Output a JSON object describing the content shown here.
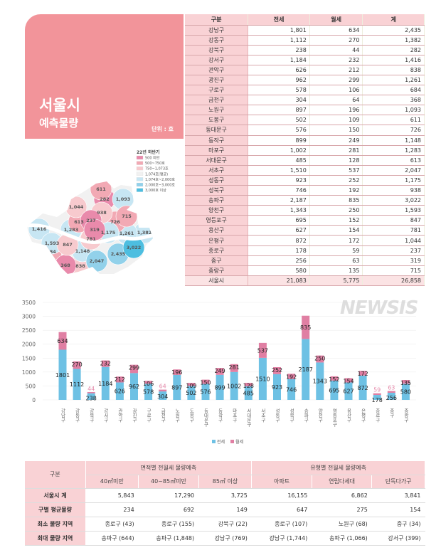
{
  "card": {
    "title": "서울시",
    "subtitle": "예측물량",
    "unit": "단위 : 호"
  },
  "district_table": {
    "headers": [
      "구분",
      "전세",
      "월세",
      "계"
    ],
    "rows": [
      [
        "강남구",
        "1,801",
        "634",
        "2,435"
      ],
      [
        "강동구",
        "1,112",
        "270",
        "1,382"
      ],
      [
        "강북구",
        "238",
        "44",
        "282"
      ],
      [
        "강서구",
        "1,184",
        "232",
        "1,416"
      ],
      [
        "관악구",
        "626",
        "212",
        "838"
      ],
      [
        "광진구",
        "962",
        "299",
        "1,261"
      ],
      [
        "구로구",
        "578",
        "106",
        "684"
      ],
      [
        "금천구",
        "304",
        "64",
        "368"
      ],
      [
        "노원구",
        "897",
        "196",
        "1,093"
      ],
      [
        "도봉구",
        "502",
        "109",
        "611"
      ],
      [
        "동대문구",
        "576",
        "150",
        "726"
      ],
      [
        "동작구",
        "899",
        "249",
        "1,148"
      ],
      [
        "마포구",
        "1,002",
        "281",
        "1,283"
      ],
      [
        "서대문구",
        "485",
        "128",
        "613"
      ],
      [
        "서초구",
        "1,510",
        "537",
        "2,047"
      ],
      [
        "성동구",
        "923",
        "252",
        "1,175"
      ],
      [
        "성북구",
        "746",
        "192",
        "938"
      ],
      [
        "송파구",
        "2,187",
        "835",
        "3,022"
      ],
      [
        "양천구",
        "1,343",
        "250",
        "1,593"
      ],
      [
        "영등포구",
        "695",
        "152",
        "847"
      ],
      [
        "용산구",
        "627",
        "154",
        "781"
      ],
      [
        "은평구",
        "872",
        "172",
        "1,044"
      ],
      [
        "종로구",
        "178",
        "59",
        "237"
      ],
      [
        "중구",
        "256",
        "63",
        "319"
      ],
      [
        "중랑구",
        "580",
        "135",
        "715"
      ]
    ],
    "total": [
      "서울시",
      "21,083",
      "5,775",
      "26,858"
    ]
  },
  "map": {
    "legend_title": "22년 하반기",
    "legend": [
      {
        "label": "500 미만",
        "color": "#e98aab"
      },
      {
        "label": "500~750호",
        "color": "#f2a9b4"
      },
      {
        "label": "750~1,073호",
        "color": "#f7cace"
      },
      {
        "label": "1,074호(평균)",
        "color": "#f1f1f1"
      },
      {
        "label": "1,074호~2,000호",
        "color": "#c7e6f3"
      },
      {
        "label": "2,000호~3,000호",
        "color": "#92d1ea"
      },
      {
        "label": "3,000호 이상",
        "color": "#4dbee0"
      }
    ],
    "river_color": "#ffffff"
  },
  "chart_data": {
    "type": "bar",
    "stacked": true,
    "categories": [
      "강남구",
      "강동구",
      "강북구",
      "강서구",
      "관악구",
      "광진구",
      "구로구",
      "금천구",
      "노원구",
      "도봉구",
      "동대문구",
      "동작구",
      "마포구",
      "서대문구",
      "서초구",
      "성동구",
      "성북구",
      "송파구",
      "양천구",
      "영등포구",
      "용산구",
      "은평구",
      "종로구",
      "중구",
      "중랑구"
    ],
    "series": [
      {
        "name": "전세",
        "color": "#6ec1e4",
        "values": [
          1801,
          1112,
          238,
          1184,
          626,
          962,
          578,
          304,
          897,
          502,
          576,
          899,
          1002,
          485,
          1510,
          923,
          746,
          2187,
          1343,
          695,
          627,
          872,
          178,
          256,
          580
        ]
      },
      {
        "name": "월세",
        "color": "#e07fa3",
        "values": [
          634,
          270,
          44,
          232,
          212,
          299,
          106,
          64,
          196,
          109,
          150,
          249,
          281,
          128,
          537,
          252,
          192,
          835,
          250,
          152,
          154,
          172,
          59,
          63,
          135
        ]
      }
    ],
    "yticks": [
      "0",
      "500",
      "1000",
      "1500",
      "2000",
      "2500",
      "3000",
      "3500"
    ],
    "ylim": [
      0,
      3500
    ],
    "grid": true,
    "legend": "bottom"
  },
  "summary_table": {
    "group_headers": [
      "구분",
      "면적별 전월세 물량예측",
      "유형별 전월세 물량예측"
    ],
    "sub_headers": [
      "40㎡미만",
      "40~85㎡미만",
      "85㎡ 이상",
      "아파트",
      "연립다세대",
      "단독다가구"
    ],
    "rows": [
      {
        "label": "서울시 계",
        "values": [
          "5,843",
          "17,290",
          "3,725",
          "16,155",
          "6,862",
          "3,841"
        ]
      },
      {
        "label": "구별 평균물량",
        "values": [
          "234",
          "692",
          "149",
          "647",
          "275",
          "154"
        ]
      },
      {
        "label": "최소 물량 지역",
        "values": [
          "종로구 (43)",
          "종로구 (155)",
          "강북구 (22)",
          "종로구 (107)",
          "노원구 (68)",
          "중구 (34)"
        ]
      },
      {
        "label": "최대 물량 지역",
        "values": [
          "송파구 (644)",
          "송파구 (1,848)",
          "강남구 (769)",
          "강남구 (1,744)",
          "송파구 (1,066)",
          "강서구 (399)"
        ]
      }
    ]
  },
  "watermark": "NEWSIS"
}
